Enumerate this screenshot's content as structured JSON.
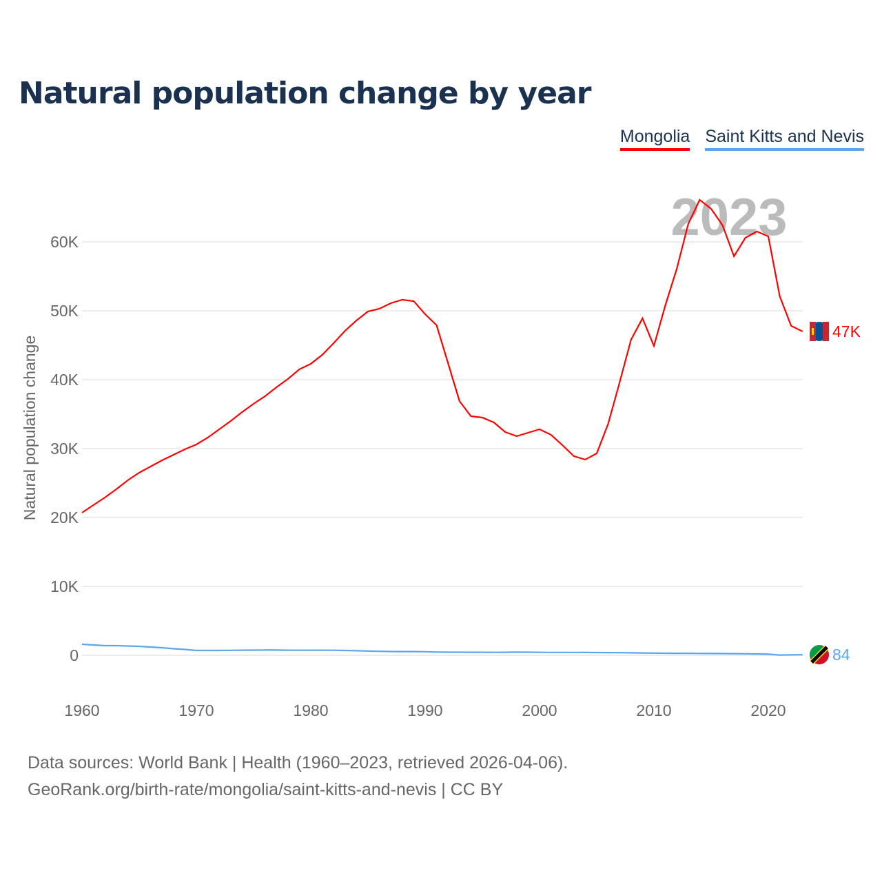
{
  "title": "Natural population change by year",
  "legend": [
    {
      "label": "Mongolia",
      "color": "#ff0000"
    },
    {
      "label": "Saint Kitts and Nevis",
      "color": "#5aa5ee"
    }
  ],
  "year_watermark": "2023",
  "footer": {
    "line1": "Data sources: World Bank | Health (1960–2023, retrieved 2026-04-06).",
    "line2": "GeoRank.org/birth-rate/mongolia/saint-kitts-and-nevis | CC BY"
  },
  "chart_data": {
    "type": "line",
    "title": "Natural population change by year",
    "xlabel": "",
    "ylabel": "Natural population change",
    "xlim": [
      1960,
      2023
    ],
    "ylim": [
      -5000,
      70000
    ],
    "x_ticks": [
      "1960",
      "1970",
      "1980",
      "1990",
      "2000",
      "2010",
      "2020"
    ],
    "y_ticks": [
      "0",
      "10K",
      "20K",
      "30K",
      "40K",
      "50K",
      "60K"
    ],
    "grid": true,
    "legend_position": "top-right",
    "x": [
      1960,
      1961,
      1962,
      1963,
      1964,
      1965,
      1966,
      1967,
      1968,
      1969,
      1970,
      1971,
      1972,
      1973,
      1974,
      1975,
      1976,
      1977,
      1978,
      1979,
      1980,
      1981,
      1982,
      1983,
      1984,
      1985,
      1986,
      1987,
      1988,
      1989,
      1990,
      1991,
      1992,
      1993,
      1994,
      1995,
      1996,
      1997,
      1998,
      1999,
      2000,
      2001,
      2002,
      2003,
      2004,
      2005,
      2006,
      2007,
      2008,
      2009,
      2010,
      2011,
      2012,
      2013,
      2014,
      2015,
      2016,
      2017,
      2018,
      2019,
      2020,
      2021,
      2022,
      2023
    ],
    "series": [
      {
        "name": "Mongolia",
        "color": "#ff0000",
        "end_label": "47K",
        "values": [
          20700,
          21800,
          22900,
          24100,
          25400,
          26500,
          27400,
          28300,
          29100,
          29900,
          30600,
          31600,
          32800,
          34000,
          35300,
          36500,
          37600,
          38900,
          40100,
          41500,
          42300,
          43600,
          45300,
          47100,
          48600,
          49900,
          50300,
          51100,
          51600,
          51400,
          49500,
          47900,
          42400,
          36900,
          34700,
          34500,
          33800,
          32400,
          31800,
          32300,
          32800,
          32000,
          30500,
          28900,
          28400,
          29300,
          33600,
          39600,
          45800,
          48900,
          44900,
          50800,
          56100,
          62600,
          66100,
          64800,
          62400,
          57900,
          60600,
          61500,
          60800,
          52100,
          47800,
          47000
        ]
      },
      {
        "name": "Saint Kitts and Nevis",
        "color": "#5aa5ee",
        "end_label": "84",
        "values": [
          1600,
          1500,
          1400,
          1400,
          1350,
          1300,
          1200,
          1100,
          950,
          850,
          700,
          700,
          700,
          720,
          740,
          750,
          760,
          760,
          740,
          730,
          740,
          740,
          730,
          700,
          660,
          620,
          580,
          550,
          540,
          540,
          520,
          470,
          450,
          450,
          440,
          440,
          430,
          440,
          460,
          450,
          430,
          420,
          420,
          420,
          410,
          400,
          390,
          380,
          360,
          340,
          320,
          300,
          290,
          280,
          270,
          260,
          250,
          240,
          220,
          200,
          160,
          40,
          60,
          84
        ]
      }
    ]
  }
}
